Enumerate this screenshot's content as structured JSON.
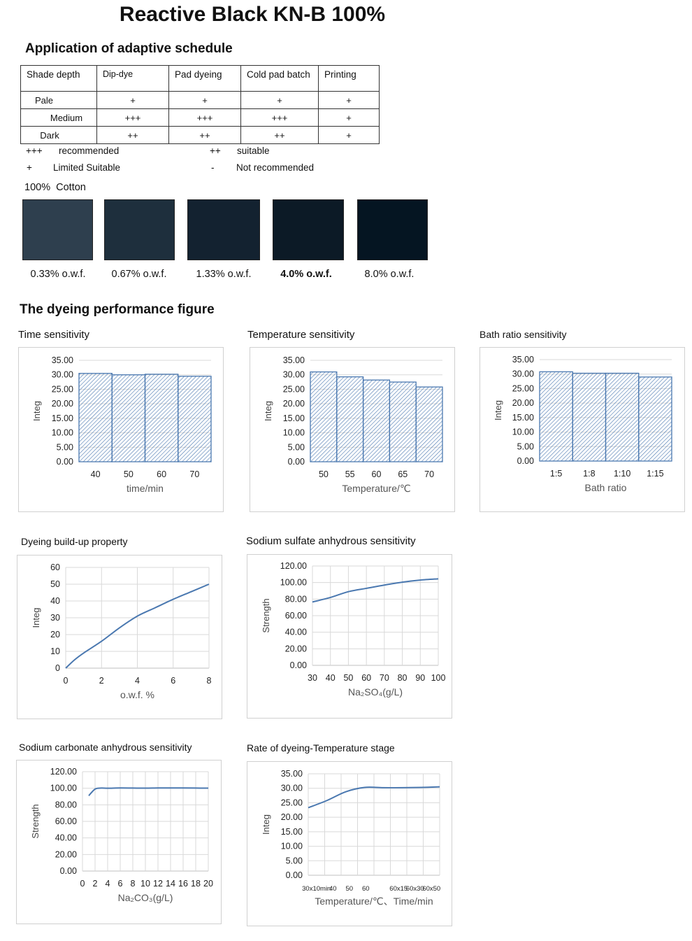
{
  "title": "Reactive Black KN-B 100%",
  "schedule": {
    "heading": "Application of adaptive schedule",
    "columns": [
      "Shade depth",
      "Dip-dye",
      "Pad dyeing",
      "Cold pad batch",
      "Printing"
    ],
    "rows": [
      [
        "Pale",
        "+",
        "+",
        "+",
        "+"
      ],
      [
        "Medium",
        "+++",
        "+++",
        "+++",
        "+"
      ],
      [
        "Dark",
        "++",
        "++",
        "++",
        "+"
      ]
    ],
    "legend": [
      {
        "symbol": "+++",
        "text": "recommended"
      },
      {
        "symbol": "++",
        "text": "suitable"
      },
      {
        "symbol": "+",
        "text": "Limited Suitable"
      },
      {
        "symbol": "-",
        "text": "Not recommended"
      }
    ]
  },
  "cotton": {
    "label": "100%  Cotton",
    "swatches": [
      {
        "label": "0.33% o.w.f.",
        "color": "#2e3f4e",
        "bold": false
      },
      {
        "label": "0.67% o.w.f.",
        "color": "#1e2f3d",
        "bold": false
      },
      {
        "label": "1.33% o.w.f.",
        "color": "#132230",
        "bold": false
      },
      {
        "label": "4.0% o.w.f.",
        "color": "#0c1a26",
        "bold": true
      },
      {
        "label": "8.0% o.w.f.",
        "color": "#051522",
        "bold": false
      }
    ]
  },
  "performance_heading": "The dyeing performance figure",
  "chart_colors": {
    "series": "#4a78b0",
    "grid": "#d9d9d9",
    "axis": "#bfbfbf"
  },
  "chart_data": [
    {
      "id": "time",
      "type": "bar",
      "title": "Time sensitivity",
      "categories": [
        "40",
        "50",
        "60",
        "70"
      ],
      "values": [
        30.5,
        30.0,
        30.2,
        29.5
      ],
      "xlabel": "time/min",
      "ylabel": "Integ",
      "ylim": [
        0,
        35
      ],
      "yticks": [
        "0.00",
        "5.00",
        "10.00",
        "15.00",
        "20.00",
        "25.00",
        "30.00",
        "35.00"
      ],
      "grid": true
    },
    {
      "id": "temp",
      "type": "bar",
      "title": "Temperature sensitivity",
      "categories": [
        "50",
        "55",
        "60",
        "65",
        "70"
      ],
      "values": [
        31.0,
        29.3,
        28.2,
        27.5,
        25.8
      ],
      "xlabel": "Temperature/℃",
      "ylabel": "Integ",
      "ylim": [
        0,
        35
      ],
      "yticks": [
        "0.00",
        "5.00",
        "10.00",
        "15.00",
        "20.00",
        "25.00",
        "30.00",
        "35.00"
      ],
      "grid": true
    },
    {
      "id": "bath",
      "type": "bar",
      "title": "Bath ratio sensitivity",
      "categories": [
        "1:5",
        "1:8",
        "1:10",
        "1:15"
      ],
      "values": [
        30.8,
        30.3,
        30.3,
        29.0
      ],
      "xlabel": "Bath ratio",
      "ylabel": "Integ",
      "ylim": [
        0,
        35
      ],
      "yticks": [
        "0.00",
        "5.00",
        "10.00",
        "15.00",
        "20.00",
        "25.00",
        "30.00",
        "35.00"
      ],
      "grid": true
    },
    {
      "id": "buildup",
      "type": "line",
      "title": "Dyeing build-up property",
      "x": [
        0,
        0.5,
        1,
        2,
        3,
        4,
        5,
        6,
        7,
        8
      ],
      "y": [
        0,
        5,
        9,
        16,
        24,
        31,
        36,
        41,
        45.5,
        50
      ],
      "xlim": [
        0,
        8
      ],
      "xticks": [
        "0",
        "2",
        "4",
        "6",
        "8"
      ],
      "xlabel": "o.w.f. %",
      "ylabel": "Integ",
      "ylim": [
        0,
        60
      ],
      "yticks": [
        "0",
        "10",
        "20",
        "30",
        "40",
        "50",
        "60"
      ],
      "grid": true
    },
    {
      "id": "sulfate",
      "type": "line",
      "title": "Sodium sulfate anhydrous sensitivity",
      "x": [
        30,
        40,
        50,
        60,
        70,
        80,
        90,
        100
      ],
      "y": [
        76.5,
        82,
        89,
        93,
        97,
        100.5,
        103,
        104.5
      ],
      "xlim": [
        30,
        100
      ],
      "xticks": [
        "30",
        "40",
        "50",
        "60",
        "70",
        "80",
        "90",
        "100"
      ],
      "xlabel": "Na₂SO₄(g/L)",
      "ylabel": "Strength",
      "ylim": [
        0,
        120
      ],
      "yticks": [
        "0.00",
        "20.00",
        "40.00",
        "60.00",
        "80.00",
        "100.00",
        "120.00"
      ],
      "grid": true
    },
    {
      "id": "carbonate",
      "type": "line",
      "title": "Sodium carbonate anhydrous sensitivity",
      "x": [
        1,
        2,
        3,
        4,
        6,
        8,
        10,
        12,
        14,
        16,
        18,
        20
      ],
      "y": [
        91,
        99,
        100.2,
        100,
        100.3,
        100.2,
        100.1,
        100.3,
        100.4,
        100.3,
        100.2,
        100.1
      ],
      "xlim": [
        0,
        20
      ],
      "xticks": [
        "0",
        "2",
        "4",
        "6",
        "8",
        "10",
        "12",
        "14",
        "16",
        "18",
        "20"
      ],
      "xlabel": "Na₂CO₃(g/L)",
      "ylabel": "Strength",
      "ylim": [
        0,
        120
      ],
      "yticks": [
        "0.00",
        "20.00",
        "40.00",
        "60.00",
        "80.00",
        "100.00",
        "120.00"
      ],
      "grid": true
    },
    {
      "id": "rate",
      "type": "line",
      "title": "Rate of dyeing-Temperature stage",
      "categories": [
        "30x10min",
        "40",
        "50",
        "60",
        "",
        "60x15",
        "60x30",
        "60x50"
      ],
      "values": [
        23.3,
        25.8,
        28.8,
        30.3,
        30.2,
        30.2,
        30.3,
        30.5
      ],
      "xlabel": "Temperature/℃、Time/min",
      "ylabel": "Integ",
      "ylim": [
        0,
        35
      ],
      "yticks": [
        "0.00",
        "5.00",
        "10.00",
        "15.00",
        "20.00",
        "25.00",
        "30.00",
        "35.00"
      ],
      "grid": true
    }
  ]
}
